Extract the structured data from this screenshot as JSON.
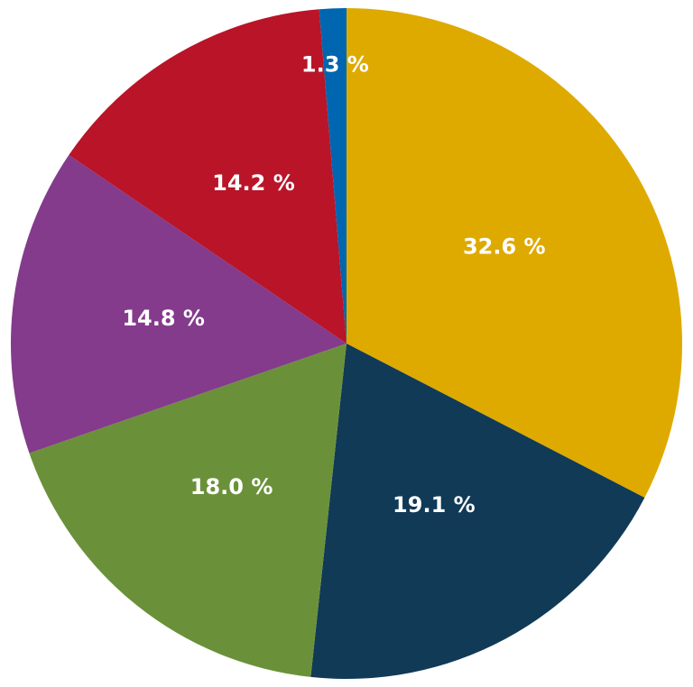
{
  "chart_data": {
    "type": "pie",
    "values": [
      32.6,
      19.1,
      18.0,
      14.8,
      14.2,
      1.3
    ],
    "value_labels": [
      "32.6 %",
      "19.1 %",
      "18.0 %",
      "14.8 %",
      "14.2 %",
      "1.3 %"
    ],
    "colors": [
      "#deaa00",
      "#103a56",
      "#6a9139",
      "#843b8c",
      "#b91428",
      "#0066b0"
    ]
  }
}
